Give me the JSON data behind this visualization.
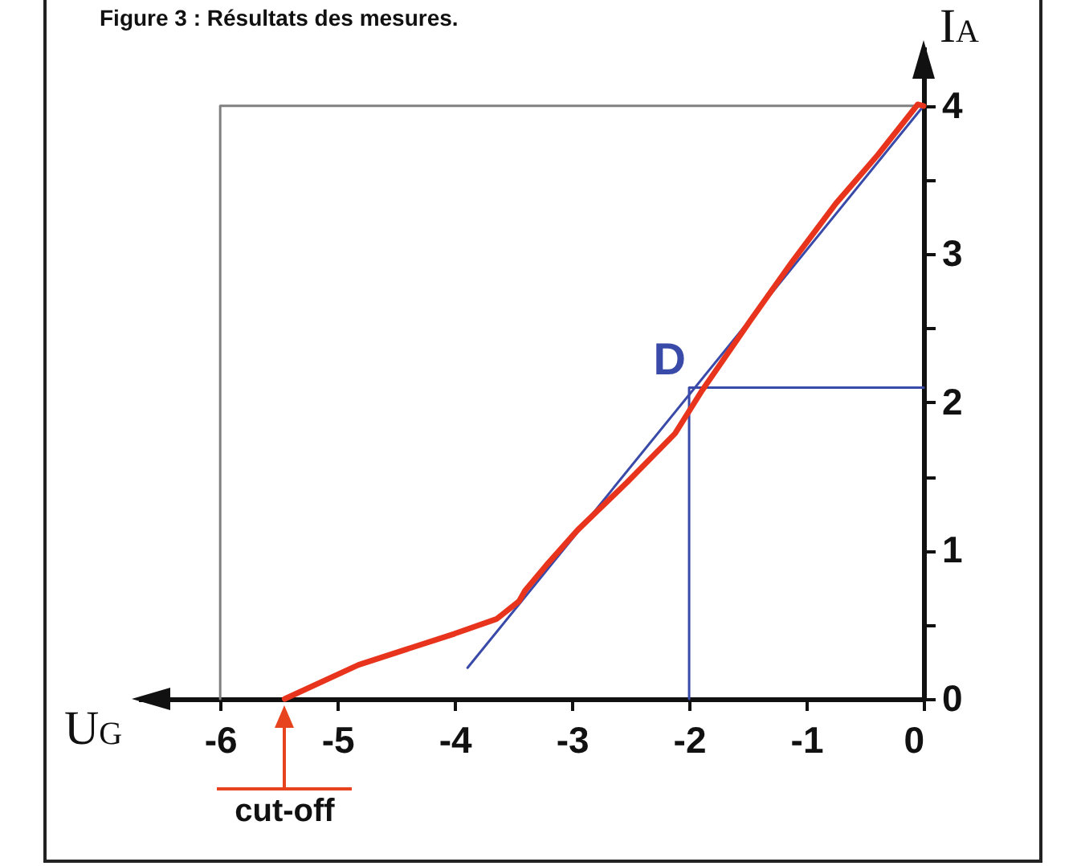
{
  "chart_data": {
    "type": "line",
    "title": "Figure 3 : Résultats des mesures.",
    "xlabel": "U$_{G}$",
    "ylabel": "I$_{A}$",
    "xlim": [
      -6.7,
      0
    ],
    "ylim": [
      0,
      4.4
    ],
    "xticks": [
      -6,
      -5,
      -4,
      -3,
      -2,
      -1,
      0
    ],
    "yticks": [
      0,
      {
        "value": 0.5,
        "label": null
      },
      1,
      {
        "value": 1.5,
        "label": null
      },
      2,
      {
        "value": 2.5,
        "label": null
      },
      3,
      {
        "value": 3.5,
        "label": null
      },
      4
    ],
    "grid": false,
    "marker": "none",
    "line_style": "solid",
    "series": [
      {
        "color": "#808080",
        "x": [
          -6,
          -6,
          0
        ],
        "values": [
          0,
          4,
          4
        ]
      },
      {
        "color": "#3a4aa8",
        "x": [
          -2,
          -2,
          0
        ],
        "values": [
          0,
          2.1,
          2.1
        ]
      },
      {
        "color": "#3a4aa8",
        "x": [
          -3.89,
          0
        ],
        "values": [
          0.21,
          4
        ]
      },
      {
        "color": "#e8341c",
        "x": [
          -5.45,
          -4.82,
          -4.0,
          -3.64,
          -3.45,
          -3.4,
          -3.22,
          -2.95,
          -2.53,
          -2.12,
          -1.89,
          -1.48,
          -1.12,
          -0.75,
          -0.39,
          -0.05,
          0
        ],
        "values": [
          0,
          0.23,
          0.44,
          0.54,
          0.66,
          0.73,
          0.9,
          1.14,
          1.46,
          1.79,
          2.08,
          2.55,
          2.95,
          3.34,
          3.67,
          4.01,
          4
        ]
      }
    ],
    "annotations": [
      {
        "text": "D",
        "x": -2,
        "y": 2.1
      },
      {
        "text": "cut-off",
        "x": -5.45,
        "y": 0
      }
    ]
  }
}
